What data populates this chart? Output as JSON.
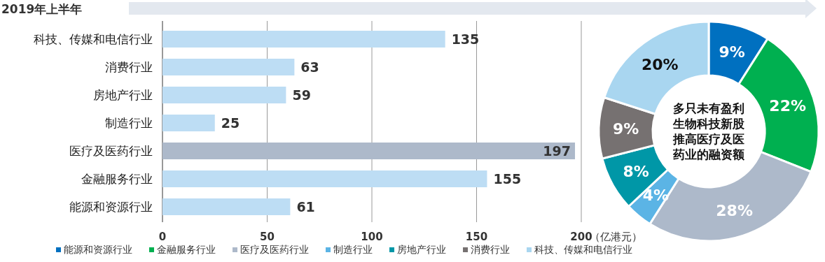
{
  "chart_data": [
    {
      "type": "bar",
      "orientation": "horizontal",
      "title": "2019年上半年",
      "xlabel": "（亿港元）",
      "categories": [
        "科技、传媒和电信行业",
        "消费行业",
        "房地产行业",
        "制造行业",
        "医疗及医药行业",
        "金融服务行业",
        "能源和资源行业"
      ],
      "values": [
        135,
        63,
        59,
        25,
        197,
        155,
        61
      ],
      "colors": [
        "#bdddf4",
        "#bdddf4",
        "#bdddf4",
        "#bdddf4",
        "#adb9ca",
        "#bdddf4",
        "#bdddf4"
      ],
      "xlim": [
        0,
        200
      ],
      "xticks": [
        0,
        50,
        100,
        150,
        200
      ],
      "grid": "x",
      "data_labels": true
    },
    {
      "type": "donut",
      "categories": [
        "能源和资源行业",
        "金融服务行业",
        "医疗及医药行业",
        "制造行业",
        "房地产行业",
        "消费行业",
        "科技、传媒和电信行业"
      ],
      "values": [
        9,
        22,
        28,
        4,
        8,
        9,
        20
      ],
      "value_labels": [
        "9%",
        "22%",
        "28%",
        "4%",
        "8%",
        "9%",
        "20%"
      ],
      "colors": [
        "#0070c0",
        "#00b050",
        "#adb9ca",
        "#5bb4e5",
        "#0097a7",
        "#767171",
        "#a9d6f0"
      ],
      "legend": "bottom",
      "annotations": [
        "多只未有盈利生物科技新股推高医疗及医药业的融资额"
      ]
    }
  ]
}
